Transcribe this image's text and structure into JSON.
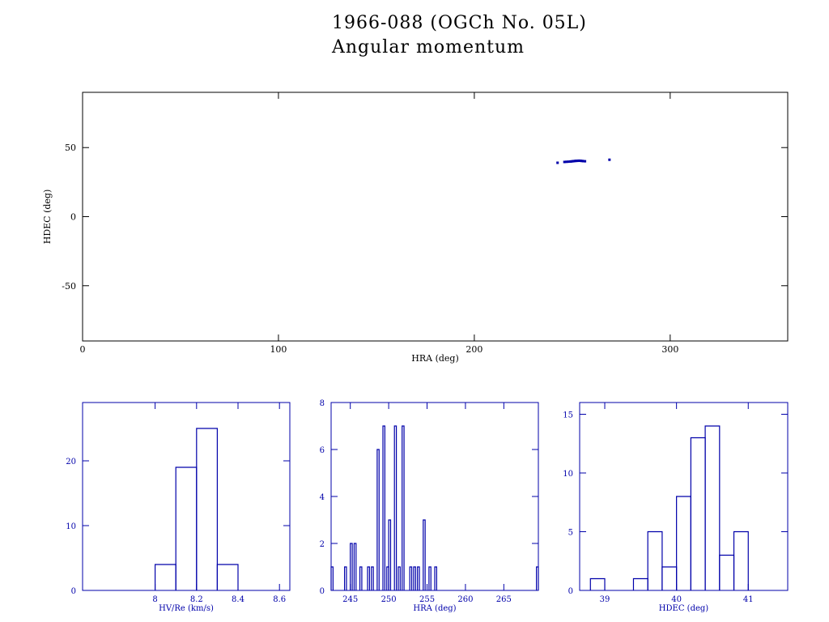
{
  "header": {
    "title_line1": "1966-088 (OGCh No. 05L)",
    "title_line2": "Angular momentum"
  },
  "colors": {
    "data": "#0000aa",
    "axes_top": "#000000",
    "axes_bottom": "#0000aa"
  },
  "chart_data": [
    {
      "type": "scatter",
      "xlabel": "HRA (deg)",
      "ylabel": "HDEC (deg)",
      "xlim": [
        0,
        360
      ],
      "ylim": [
        -90,
        90
      ],
      "xticks": [
        0,
        100,
        200,
        300
      ],
      "yticks": [
        -50,
        0,
        50
      ],
      "grid": false,
      "points": [
        {
          "x": 242.5,
          "y": 39.0
        },
        {
          "x": 246.0,
          "y": 39.6
        },
        {
          "x": 247.0,
          "y": 39.7
        },
        {
          "x": 248.0,
          "y": 39.8
        },
        {
          "x": 249.0,
          "y": 39.9
        },
        {
          "x": 249.6,
          "y": 40.0
        },
        {
          "x": 250.2,
          "y": 40.1
        },
        {
          "x": 250.8,
          "y": 40.2
        },
        {
          "x": 251.4,
          "y": 40.3
        },
        {
          "x": 252.0,
          "y": 40.4
        },
        {
          "x": 252.6,
          "y": 40.4
        },
        {
          "x": 253.2,
          "y": 40.5
        },
        {
          "x": 253.8,
          "y": 40.5
        },
        {
          "x": 254.4,
          "y": 40.4
        },
        {
          "x": 255.0,
          "y": 40.3
        },
        {
          "x": 255.6,
          "y": 40.2
        },
        {
          "x": 256.5,
          "y": 40.1
        },
        {
          "x": 269.0,
          "y": 41.2
        }
      ]
    },
    {
      "type": "histogram",
      "xlabel": "HV/Re (km/s)",
      "ylabel": "",
      "xlim": [
        7.65,
        8.65
      ],
      "ylim": [
        0,
        29
      ],
      "xticks": [
        8.0,
        8.2,
        8.4,
        8.6
      ],
      "xtick_labels": [
        "8",
        "8.2",
        "8.4",
        "8.6"
      ],
      "yticks": [
        0,
        10,
        20
      ],
      "bins": [
        {
          "x0": 8.0,
          "x1": 8.1,
          "count": 4
        },
        {
          "x0": 8.1,
          "x1": 8.2,
          "count": 19
        },
        {
          "x0": 8.2,
          "x1": 8.3,
          "count": 25
        },
        {
          "x0": 8.3,
          "x1": 8.4,
          "count": 4
        }
      ]
    },
    {
      "type": "histogram",
      "xlabel": "HRA (deg)",
      "ylabel": "",
      "xlim": [
        242.5,
        269.5
      ],
      "ylim": [
        0,
        8
      ],
      "xticks": [
        245,
        250,
        255,
        260,
        265
      ],
      "yticks": [
        0,
        2,
        4,
        6,
        8
      ],
      "bins": [
        {
          "x0": 242.5,
          "x1": 242.75,
          "count": 1
        },
        {
          "x0": 244.25,
          "x1": 244.5,
          "count": 1
        },
        {
          "x0": 245.0,
          "x1": 245.25,
          "count": 2
        },
        {
          "x0": 245.5,
          "x1": 245.75,
          "count": 2
        },
        {
          "x0": 246.25,
          "x1": 246.5,
          "count": 1
        },
        {
          "x0": 247.25,
          "x1": 247.5,
          "count": 1
        },
        {
          "x0": 247.75,
          "x1": 248.0,
          "count": 1
        },
        {
          "x0": 248.5,
          "x1": 248.75,
          "count": 6
        },
        {
          "x0": 249.25,
          "x1": 249.5,
          "count": 7
        },
        {
          "x0": 249.75,
          "x1": 250.0,
          "count": 1
        },
        {
          "x0": 250.0,
          "x1": 250.25,
          "count": 3
        },
        {
          "x0": 250.75,
          "x1": 251.0,
          "count": 7
        },
        {
          "x0": 251.25,
          "x1": 251.5,
          "count": 1
        },
        {
          "x0": 251.75,
          "x1": 252.0,
          "count": 7
        },
        {
          "x0": 252.75,
          "x1": 253.0,
          "count": 1
        },
        {
          "x0": 253.25,
          "x1": 253.5,
          "count": 1
        },
        {
          "x0": 253.75,
          "x1": 254.0,
          "count": 1
        },
        {
          "x0": 254.5,
          "x1": 254.75,
          "count": 3
        },
        {
          "x0": 255.25,
          "x1": 255.5,
          "count": 1
        },
        {
          "x0": 256.0,
          "x1": 256.25,
          "count": 1
        },
        {
          "x0": 269.25,
          "x1": 269.5,
          "count": 1
        }
      ]
    },
    {
      "type": "histogram",
      "xlabel": "HDEC (deg)",
      "ylabel": "",
      "xlim": [
        38.65,
        41.55
      ],
      "ylim": [
        0,
        16
      ],
      "xticks": [
        39,
        40,
        41
      ],
      "yticks": [
        0,
        5,
        10,
        15
      ],
      "bins": [
        {
          "x0": 38.8,
          "x1": 39.0,
          "count": 1
        },
        {
          "x0": 39.4,
          "x1": 39.6,
          "count": 1
        },
        {
          "x0": 39.6,
          "x1": 39.8,
          "count": 5
        },
        {
          "x0": 39.8,
          "x1": 40.0,
          "count": 2
        },
        {
          "x0": 40.0,
          "x1": 40.2,
          "count": 8
        },
        {
          "x0": 40.2,
          "x1": 40.4,
          "count": 13
        },
        {
          "x0": 40.4,
          "x1": 40.6,
          "count": 14
        },
        {
          "x0": 40.6,
          "x1": 40.8,
          "count": 3
        },
        {
          "x0": 40.8,
          "x1": 41.0,
          "count": 5
        }
      ]
    }
  ]
}
